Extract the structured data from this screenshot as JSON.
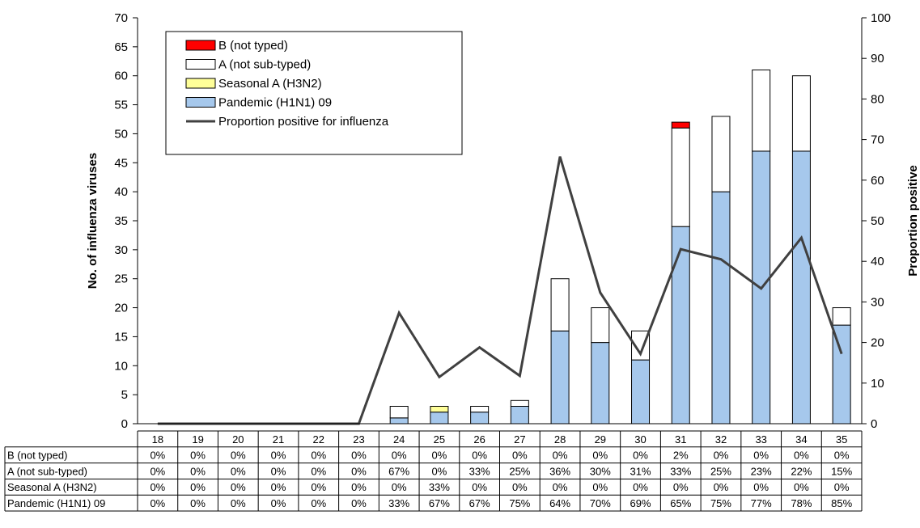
{
  "chart_data": {
    "type": "bar",
    "stacked": true,
    "categories": [
      "18",
      "19",
      "20",
      "21",
      "22",
      "23",
      "24",
      "25",
      "26",
      "27",
      "28",
      "29",
      "30",
      "31",
      "32",
      "33",
      "34",
      "35"
    ],
    "series": [
      {
        "name": "Pandemic (H1N1) 09",
        "color": "#a6c8ec",
        "values": [
          0,
          0,
          0,
          0,
          0,
          0,
          1,
          2,
          2,
          3,
          16,
          14,
          11,
          34,
          40,
          47,
          47,
          17
        ]
      },
      {
        "name": "Seasonal A (H3N2)",
        "color": "#ffff99",
        "values": [
          0,
          0,
          0,
          0,
          0,
          0,
          0,
          1,
          0,
          0,
          0,
          0,
          0,
          0,
          0,
          0,
          0,
          0
        ]
      },
      {
        "name": "A (not sub-typed)",
        "color": "#ffffff",
        "values": [
          0,
          0,
          0,
          0,
          0,
          0,
          2,
          0,
          1,
          1,
          9,
          6,
          5,
          17,
          13,
          14,
          13,
          3
        ]
      },
      {
        "name": "B (not typed)",
        "color": "#ff0000",
        "values": [
          0,
          0,
          0,
          0,
          0,
          0,
          0,
          0,
          0,
          0,
          0,
          0,
          0,
          1,
          0,
          0,
          0,
          0
        ]
      }
    ],
    "line": {
      "name": "Proportion positive for influenza",
      "color": "#404040",
      "axis": "right",
      "values": [
        0,
        0,
        0,
        0,
        0,
        0,
        27.3,
        11.5,
        18.8,
        11.8,
        65.8,
        32.3,
        17.2,
        43.0,
        40.5,
        33.3,
        45.8,
        17.2
      ]
    },
    "ylabel": "No. of influenza viruses",
    "ylabel_right": "Proportion positive",
    "ylim": [
      0,
      70
    ],
    "yticks": [
      0,
      5,
      10,
      15,
      20,
      25,
      30,
      35,
      40,
      45,
      50,
      55,
      60,
      65,
      70
    ],
    "ylim_right": [
      0,
      100
    ],
    "yticks_right": [
      0,
      10,
      20,
      30,
      40,
      50,
      60,
      70,
      80,
      90,
      100
    ],
    "legend_position": "top-left",
    "legend_order": [
      "B (not typed)",
      "A (not sub-typed)",
      "Seasonal A (H3N2)",
      "Pandemic (H1N1) 09",
      "Proportion positive for influenza"
    ],
    "grid": false,
    "table": {
      "rows": [
        {
          "label": "B (not typed)",
          "values": [
            "0%",
            "0%",
            "0%",
            "0%",
            "0%",
            "0%",
            "0%",
            "0%",
            "0%",
            "0%",
            "0%",
            "0%",
            "0%",
            "2%",
            "0%",
            "0%",
            "0%",
            "0%"
          ]
        },
        {
          "label": "A (not sub-typed)",
          "values": [
            "0%",
            "0%",
            "0%",
            "0%",
            "0%",
            "0%",
            "67%",
            "0%",
            "33%",
            "25%",
            "36%",
            "30%",
            "31%",
            "33%",
            "25%",
            "23%",
            "22%",
            "15%"
          ]
        },
        {
          "label": "Seasonal A (H3N2)",
          "values": [
            "0%",
            "0%",
            "0%",
            "0%",
            "0%",
            "0%",
            "0%",
            "33%",
            "0%",
            "0%",
            "0%",
            "0%",
            "0%",
            "0%",
            "0%",
            "0%",
            "0%",
            "0%"
          ]
        },
        {
          "label": "Pandemic (H1N1) 09",
          "values": [
            "0%",
            "0%",
            "0%",
            "0%",
            "0%",
            "0%",
            "33%",
            "67%",
            "67%",
            "75%",
            "64%",
            "70%",
            "69%",
            "65%",
            "75%",
            "77%",
            "78%",
            "85%"
          ]
        }
      ]
    }
  }
}
